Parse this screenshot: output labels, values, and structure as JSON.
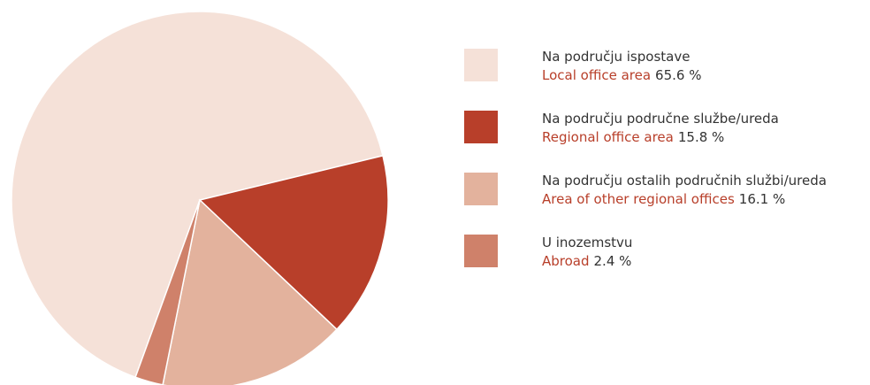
{
  "chart_data": {
    "type": "pie",
    "categories": [
      "Na području ispostave",
      "Na području područne službe/ureda",
      "Na području ostalih područnih službi/ureda",
      "U inozemstvu"
    ],
    "english_labels": [
      "Local office area",
      "Regional office area",
      "Area of other regional offices",
      "Abroad"
    ],
    "values": [
      65.6,
      15.8,
      16.1,
      2.4
    ],
    "value_labels": [
      "65.6 %",
      "15.8 %",
      "16.1 %",
      "2.4 %"
    ],
    "colors": [
      "#f5e1d8",
      "#b83f2a",
      "#e3b29d",
      "#cf816a"
    ],
    "english_label_color": "#b83f2a",
    "legend": "right"
  }
}
